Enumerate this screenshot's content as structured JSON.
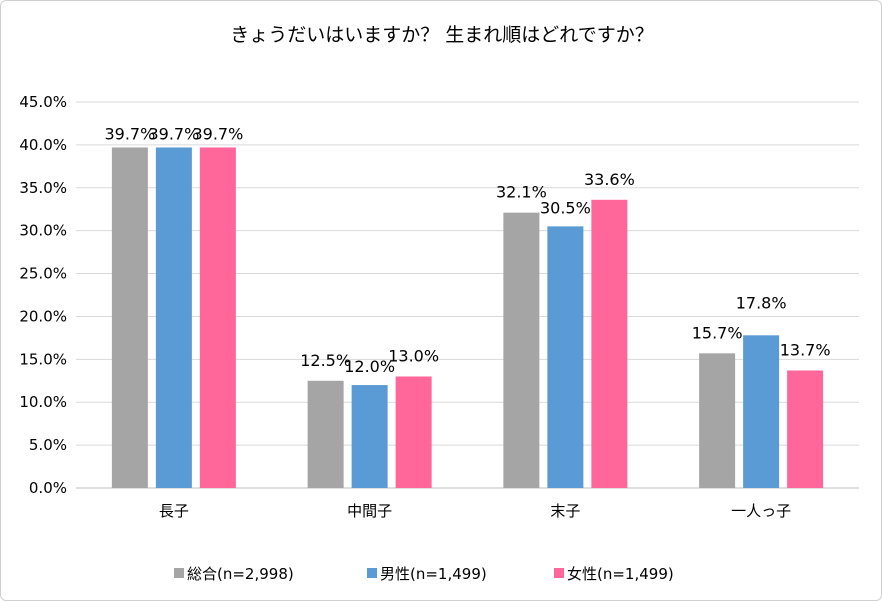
{
  "chart_data": {
    "type": "bar",
    "title": "きょうだいはいますか？ 生まれ順はどれですか？",
    "categories": [
      "長子",
      "中間子",
      "末子",
      "一人っ子"
    ],
    "series": [
      {
        "name": "総合(n=2,998)",
        "color": "#a5a5a5",
        "values": [
          39.7,
          12.5,
          32.1,
          15.7
        ],
        "labels": [
          "39.7%",
          "12.5%",
          "32.1%",
          "15.7%"
        ]
      },
      {
        "name": "男性(n=1,499)",
        "color": "#5b9bd5",
        "values": [
          39.7,
          12.0,
          30.5,
          17.8
        ],
        "labels": [
          "39.7%",
          "12.0%",
          "30.5%",
          "17.8%"
        ]
      },
      {
        "name": "女性(n=1,499)",
        "color": "#ff6699",
        "values": [
          39.7,
          13.0,
          33.6,
          13.7
        ],
        "labels": [
          "39.7%",
          "13.0%",
          "33.6%",
          "13.7%"
        ]
      }
    ],
    "y_ticks": [
      "0.0%",
      "5.0%",
      "10.0%",
      "15.0%",
      "20.0%",
      "25.0%",
      "30.0%",
      "35.0%",
      "40.0%",
      "45.0%"
    ],
    "ylim": [
      0,
      45
    ],
    "grid": true,
    "legend_position": "bottom"
  }
}
